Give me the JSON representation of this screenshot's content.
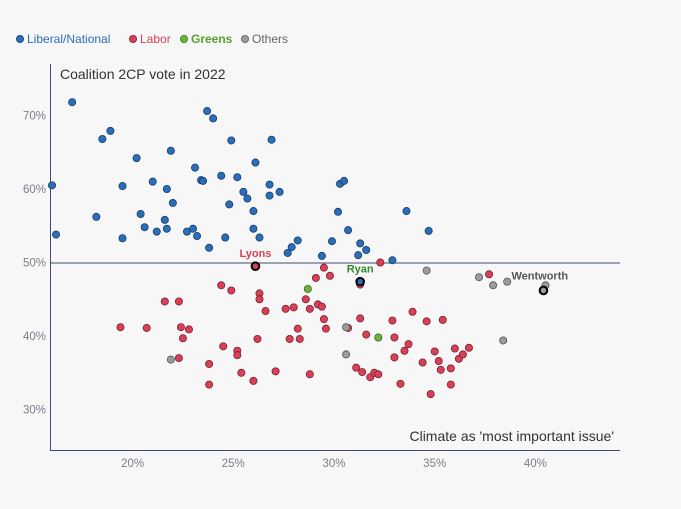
{
  "chart_data": {
    "type": "scatter",
    "title": "Coalition 2CP vote in 2022",
    "xlabel": "Climate as 'most important issue'",
    "ylabel": "",
    "xlim": [
      15.9,
      44.2
    ],
    "ylim": [
      24.5,
      77
    ],
    "x_ticks": [
      20,
      25,
      30,
      35,
      40
    ],
    "x_tick_labels": [
      "20%",
      "25%",
      "30%",
      "35%",
      "40%"
    ],
    "y_ticks": [
      30,
      40,
      50,
      60,
      70
    ],
    "y_tick_labels": [
      "30%",
      "40%",
      "50%",
      "60%",
      "70%"
    ],
    "reference_line_y": 50,
    "grid": false,
    "legend_position": "top-left",
    "series": [
      {
        "name": "Liberal/National",
        "color": "#2a6ebb",
        "points": [
          [
            16.0,
            60.5
          ],
          [
            16.2,
            53.8
          ],
          [
            17.0,
            71.8
          ],
          [
            18.2,
            56.2
          ],
          [
            18.5,
            66.8
          ],
          [
            18.9,
            67.9
          ],
          [
            19.5,
            60.4
          ],
          [
            19.5,
            53.3
          ],
          [
            20.2,
            64.2
          ],
          [
            20.4,
            56.6
          ],
          [
            20.6,
            54.8
          ],
          [
            21.0,
            61.0
          ],
          [
            21.2,
            54.2
          ],
          [
            21.6,
            55.8
          ],
          [
            21.7,
            60.0
          ],
          [
            21.7,
            54.6
          ],
          [
            21.9,
            65.2
          ],
          [
            22.0,
            58.1
          ],
          [
            22.7,
            54.2
          ],
          [
            23.0,
            54.6
          ],
          [
            23.1,
            62.9
          ],
          [
            23.2,
            53.6
          ],
          [
            23.4,
            61.2
          ],
          [
            23.5,
            61.1
          ],
          [
            23.7,
            70.6
          ],
          [
            23.8,
            52.0
          ],
          [
            24.0,
            69.6
          ],
          [
            24.4,
            61.8
          ],
          [
            24.6,
            53.4
          ],
          [
            24.8,
            57.9
          ],
          [
            24.9,
            66.6
          ],
          [
            25.2,
            61.6
          ],
          [
            25.5,
            59.6
          ],
          [
            25.7,
            58.7
          ],
          [
            26.0,
            57.0
          ],
          [
            26.0,
            54.6
          ],
          [
            26.1,
            63.6
          ],
          [
            26.3,
            53.4
          ],
          [
            26.8,
            59.1
          ],
          [
            26.8,
            60.6
          ],
          [
            26.9,
            66.7
          ],
          [
            27.3,
            59.6
          ],
          [
            27.7,
            51.3
          ],
          [
            27.9,
            52.1
          ],
          [
            28.2,
            53.0
          ],
          [
            29.4,
            50.9
          ],
          [
            29.9,
            52.9
          ],
          [
            30.2,
            56.9
          ],
          [
            30.3,
            60.7
          ],
          [
            30.5,
            61.1
          ],
          [
            30.7,
            54.4
          ],
          [
            31.2,
            51.0
          ],
          [
            31.3,
            52.6
          ],
          [
            31.6,
            51.7
          ],
          [
            32.9,
            50.3
          ],
          [
            33.6,
            57.0
          ],
          [
            34.7,
            54.3
          ]
        ]
      },
      {
        "name": "Labor",
        "color": "#d94057",
        "points": [
          [
            19.4,
            41.2
          ],
          [
            20.7,
            41.1
          ],
          [
            21.6,
            44.7
          ],
          [
            22.3,
            44.7
          ],
          [
            22.3,
            37.0
          ],
          [
            22.4,
            41.2
          ],
          [
            22.5,
            39.7
          ],
          [
            22.8,
            40.9
          ],
          [
            23.8,
            36.2
          ],
          [
            23.8,
            33.4
          ],
          [
            24.4,
            46.9
          ],
          [
            24.5,
            38.6
          ],
          [
            24.9,
            46.2
          ],
          [
            25.2,
            38.0
          ],
          [
            25.2,
            37.4
          ],
          [
            25.4,
            35.0
          ],
          [
            26.0,
            33.9
          ],
          [
            26.2,
            39.6
          ],
          [
            26.3,
            45.8
          ],
          [
            26.3,
            45.0
          ],
          [
            26.6,
            43.4
          ],
          [
            27.1,
            35.2
          ],
          [
            27.6,
            43.7
          ],
          [
            27.8,
            39.6
          ],
          [
            28.0,
            43.9
          ],
          [
            28.2,
            41.0
          ],
          [
            28.3,
            39.6
          ],
          [
            28.6,
            45.0
          ],
          [
            28.8,
            43.7
          ],
          [
            28.8,
            34.8
          ],
          [
            29.1,
            47.9
          ],
          [
            29.2,
            44.3
          ],
          [
            29.4,
            44.0
          ],
          [
            29.5,
            42.3
          ],
          [
            29.5,
            49.3
          ],
          [
            29.6,
            41.0
          ],
          [
            29.8,
            48.2
          ],
          [
            30.7,
            41.1
          ],
          [
            31.1,
            35.7
          ],
          [
            31.3,
            47.0
          ],
          [
            31.3,
            42.4
          ],
          [
            31.4,
            35.1
          ],
          [
            31.6,
            40.2
          ],
          [
            31.8,
            34.4
          ],
          [
            32.0,
            35.0
          ],
          [
            32.2,
            34.8
          ],
          [
            32.3,
            50.0
          ],
          [
            32.9,
            42.1
          ],
          [
            33.0,
            39.8
          ],
          [
            33.0,
            37.1
          ],
          [
            33.3,
            33.5
          ],
          [
            33.5,
            38.0
          ],
          [
            33.7,
            38.9
          ],
          [
            33.9,
            43.3
          ],
          [
            34.4,
            36.4
          ],
          [
            34.6,
            42.0
          ],
          [
            34.8,
            32.1
          ],
          [
            35.0,
            37.9
          ],
          [
            35.2,
            36.6
          ],
          [
            35.3,
            35.4
          ],
          [
            35.4,
            42.2
          ],
          [
            35.8,
            35.6
          ],
          [
            35.8,
            33.4
          ],
          [
            36.0,
            38.3
          ],
          [
            36.2,
            36.9
          ],
          [
            36.4,
            37.5
          ],
          [
            36.7,
            38.4
          ],
          [
            37.7,
            48.4
          ]
        ]
      },
      {
        "name": "Greens",
        "color": "#6ab539",
        "points": [
          [
            28.7,
            46.4
          ],
          [
            32.2,
            39.8
          ]
        ]
      },
      {
        "name": "Others",
        "color": "#9b9b9b",
        "points": [
          [
            21.9,
            36.8
          ],
          [
            30.6,
            41.2
          ],
          [
            30.6,
            37.5
          ],
          [
            34.6,
            48.9
          ],
          [
            37.2,
            48.0
          ],
          [
            37.9,
            46.9
          ],
          [
            38.6,
            47.4
          ],
          [
            38.4,
            39.4
          ],
          [
            40.5,
            46.9
          ]
        ]
      }
    ],
    "highlighted": [
      {
        "label": "Lyons",
        "x": 26.1,
        "y": 49.5,
        "color": "#d94057",
        "label_pos": "above"
      },
      {
        "label": "Ryan",
        "x": 31.3,
        "y": 47.4,
        "color": "#2f8a2f",
        "label_pos": "above"
      },
      {
        "label": "Wentworth",
        "x": 40.4,
        "y": 46.2,
        "color": "#555555",
        "label_pos": "above-right"
      }
    ]
  }
}
